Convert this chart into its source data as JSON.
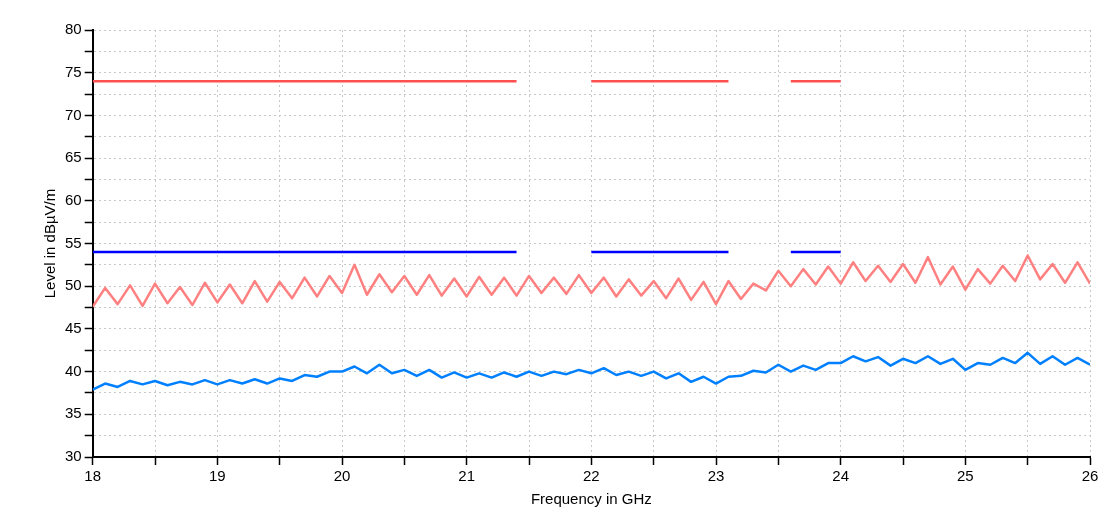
{
  "chart_data": {
    "type": "line",
    "xlabel": "Frequency in GHz",
    "ylabel": "Level in dBµV/m",
    "xlim": [
      18,
      26
    ],
    "ylim": [
      30,
      80
    ],
    "xticks": [
      18,
      {
        "value": 18.5,
        "label": null
      },
      19,
      {
        "value": 19.5,
        "label": null
      },
      20,
      {
        "value": 20.5,
        "label": null
      },
      21,
      {
        "value": 21.5,
        "label": null
      },
      22,
      {
        "value": 22.5,
        "label": null
      },
      23,
      {
        "value": 23.5,
        "label": null
      },
      24,
      {
        "value": 24.5,
        "label": null
      },
      25,
      {
        "value": 25.5,
        "label": null
      },
      26
    ],
    "yticks": [
      30,
      {
        "value": 32.5,
        "label": null
      },
      35,
      {
        "value": 37.5,
        "label": null
      },
      40,
      {
        "value": 42.5,
        "label": null
      },
      45,
      {
        "value": 47.5,
        "label": null
      },
      50,
      {
        "value": 52.5,
        "label": null
      },
      55,
      {
        "value": 57.5,
        "label": null
      },
      60,
      {
        "value": 62.5,
        "label": null
      },
      65,
      {
        "value": 67.5,
        "label": null
      },
      70,
      {
        "value": 72.5,
        "label": null
      },
      75,
      {
        "value": 77.5,
        "label": null
      },
      80
    ],
    "grid": true,
    "marker": "none",
    "line_style": "solid",
    "x": [
      18.0,
      18.1,
      18.2,
      18.3,
      18.4,
      18.5,
      18.6,
      18.7,
      18.8,
      18.9,
      19.0,
      19.1,
      19.2,
      19.3,
      19.4,
      19.5,
      19.6,
      19.7,
      19.8,
      19.9,
      20.0,
      20.1,
      20.2,
      20.3,
      20.4,
      20.5,
      20.6,
      20.7,
      20.8,
      20.9,
      21.0,
      21.1,
      21.2,
      21.3,
      21.4,
      21.5,
      21.6,
      21.7,
      21.8,
      21.9,
      22.0,
      22.1,
      22.2,
      22.3,
      22.4,
      22.5,
      22.6,
      22.7,
      22.8,
      22.9,
      23.0,
      23.1,
      23.2,
      23.3,
      23.4,
      23.5,
      23.6,
      23.7,
      23.8,
      23.9,
      24.0,
      24.1,
      24.2,
      24.3,
      24.4,
      24.5,
      24.6,
      24.7,
      24.8,
      24.9,
      25.0,
      25.1,
      25.2,
      25.3,
      25.4,
      25.5,
      25.6,
      25.7,
      25.8,
      25.9,
      26.0
    ],
    "series": [
      {
        "color": "#ff8080",
        "values": [
          47.6,
          49.8,
          47.9,
          50.1,
          47.7,
          50.3,
          48.0,
          49.9,
          47.8,
          50.4,
          48.1,
          50.2,
          48.0,
          50.6,
          48.2,
          50.5,
          48.6,
          51.0,
          48.8,
          51.2,
          49.2,
          52.5,
          49.0,
          51.4,
          49.3,
          51.2,
          49.0,
          51.3,
          48.9,
          50.9,
          48.8,
          51.1,
          49.0,
          51.0,
          48.9,
          51.2,
          49.2,
          51.0,
          49.1,
          51.3,
          49.2,
          51.0,
          48.8,
          50.8,
          48.9,
          50.6,
          48.6,
          50.9,
          48.4,
          50.5,
          47.9,
          50.6,
          48.5,
          50.3,
          49.5,
          51.8,
          50.0,
          52.0,
          50.2,
          52.3,
          50.3,
          52.8,
          50.6,
          52.4,
          50.5,
          52.6,
          50.4,
          53.4,
          50.2,
          52.3,
          49.6,
          52.0,
          50.3,
          52.4,
          50.6,
          53.6,
          50.8,
          52.6,
          50.4,
          52.8,
          50.3
        ]
      },
      {
        "color": "#0080ff",
        "values": [
          37.9,
          38.6,
          38.2,
          38.9,
          38.5,
          38.9,
          38.4,
          38.8,
          38.5,
          39.0,
          38.5,
          39.0,
          38.6,
          39.1,
          38.6,
          39.2,
          38.9,
          39.6,
          39.4,
          40.0,
          40.0,
          40.6,
          39.8,
          40.8,
          39.8,
          40.2,
          39.5,
          40.2,
          39.3,
          39.9,
          39.3,
          39.8,
          39.3,
          39.9,
          39.4,
          40.0,
          39.5,
          40.0,
          39.7,
          40.2,
          39.8,
          40.4,
          39.6,
          40.0,
          39.5,
          40.0,
          39.2,
          39.8,
          38.8,
          39.4,
          38.6,
          39.4,
          39.5,
          40.1,
          39.9,
          40.8,
          40.0,
          40.7,
          40.2,
          41.0,
          41.0,
          41.8,
          41.2,
          41.7,
          40.7,
          41.5,
          41.0,
          41.8,
          40.9,
          41.5,
          40.2,
          41.0,
          40.8,
          41.6,
          41.0,
          42.2,
          40.9,
          41.8,
          40.8,
          41.6,
          40.8
        ]
      },
      {
        "color": "#ff5050",
        "x": [
          18,
          21.4,
          21.7,
          22,
          23.1,
          23.35,
          23.6,
          24
        ],
        "values": [
          74,
          74,
          null,
          74,
          74,
          null,
          74,
          74
        ]
      },
      {
        "color": "#0000ff",
        "x": [
          18,
          21.4,
          21.7,
          22,
          23.1,
          23.35,
          23.6,
          24
        ],
        "values": [
          54,
          54,
          null,
          54,
          54,
          null,
          54,
          54
        ]
      }
    ]
  }
}
